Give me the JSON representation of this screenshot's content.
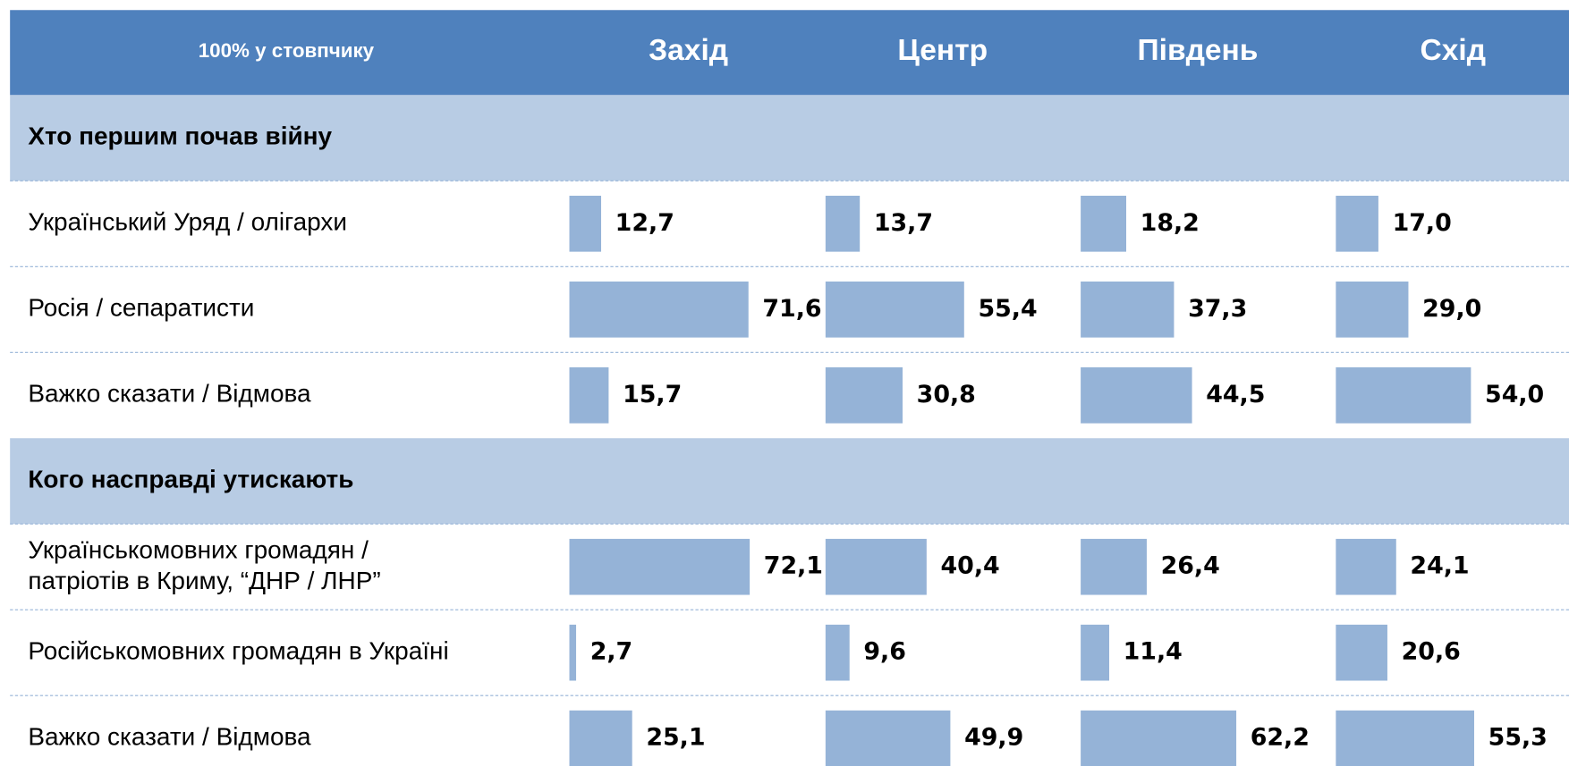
{
  "header": {
    "note": "100% у стовпчику",
    "columns": [
      "Захід",
      "Центр",
      "Південь",
      "Схід"
    ]
  },
  "sections": [
    {
      "title": "Хто першим почав війну",
      "rows": [
        {
          "label": "Український Уряд / олігархи",
          "values": [
            12.7,
            13.7,
            18.2,
            17.0
          ],
          "value_labels": [
            "12,7",
            "13,7",
            "18,2",
            "17,0"
          ]
        },
        {
          "label": "Росія / сепаратисти",
          "values": [
            71.6,
            55.4,
            37.3,
            29.0
          ],
          "value_labels": [
            "71,6",
            "55,4",
            "37,3",
            "29,0"
          ]
        },
        {
          "label": "Важко сказати / Відмова",
          "values": [
            15.7,
            30.8,
            44.5,
            54.0
          ],
          "value_labels": [
            "15,7",
            "30,8",
            "44,5",
            "54,0"
          ]
        }
      ]
    },
    {
      "title": "Кого насправді утискають",
      "rows": [
        {
          "lines": [
            "Українськомовних громадян /",
            "патріотів в Криму, “ДНР / ЛНР”"
          ],
          "values": [
            72.1,
            40.4,
            26.4,
            24.1
          ],
          "value_labels": [
            "72,1",
            "40,4",
            "26,4",
            "24,1"
          ]
        },
        {
          "label": "Російськомовних громадян в Україні",
          "values": [
            2.7,
            9.6,
            11.4,
            20.6
          ],
          "value_labels": [
            "2,7",
            "9,6",
            "11,4",
            "20,6"
          ]
        },
        {
          "label": "Важко сказати / Відмова",
          "values": [
            25.1,
            49.9,
            62.2,
            55.3
          ],
          "value_labels": [
            "25,1",
            "49,9",
            "62,2",
            "55,3"
          ]
        }
      ]
    }
  ]
}
